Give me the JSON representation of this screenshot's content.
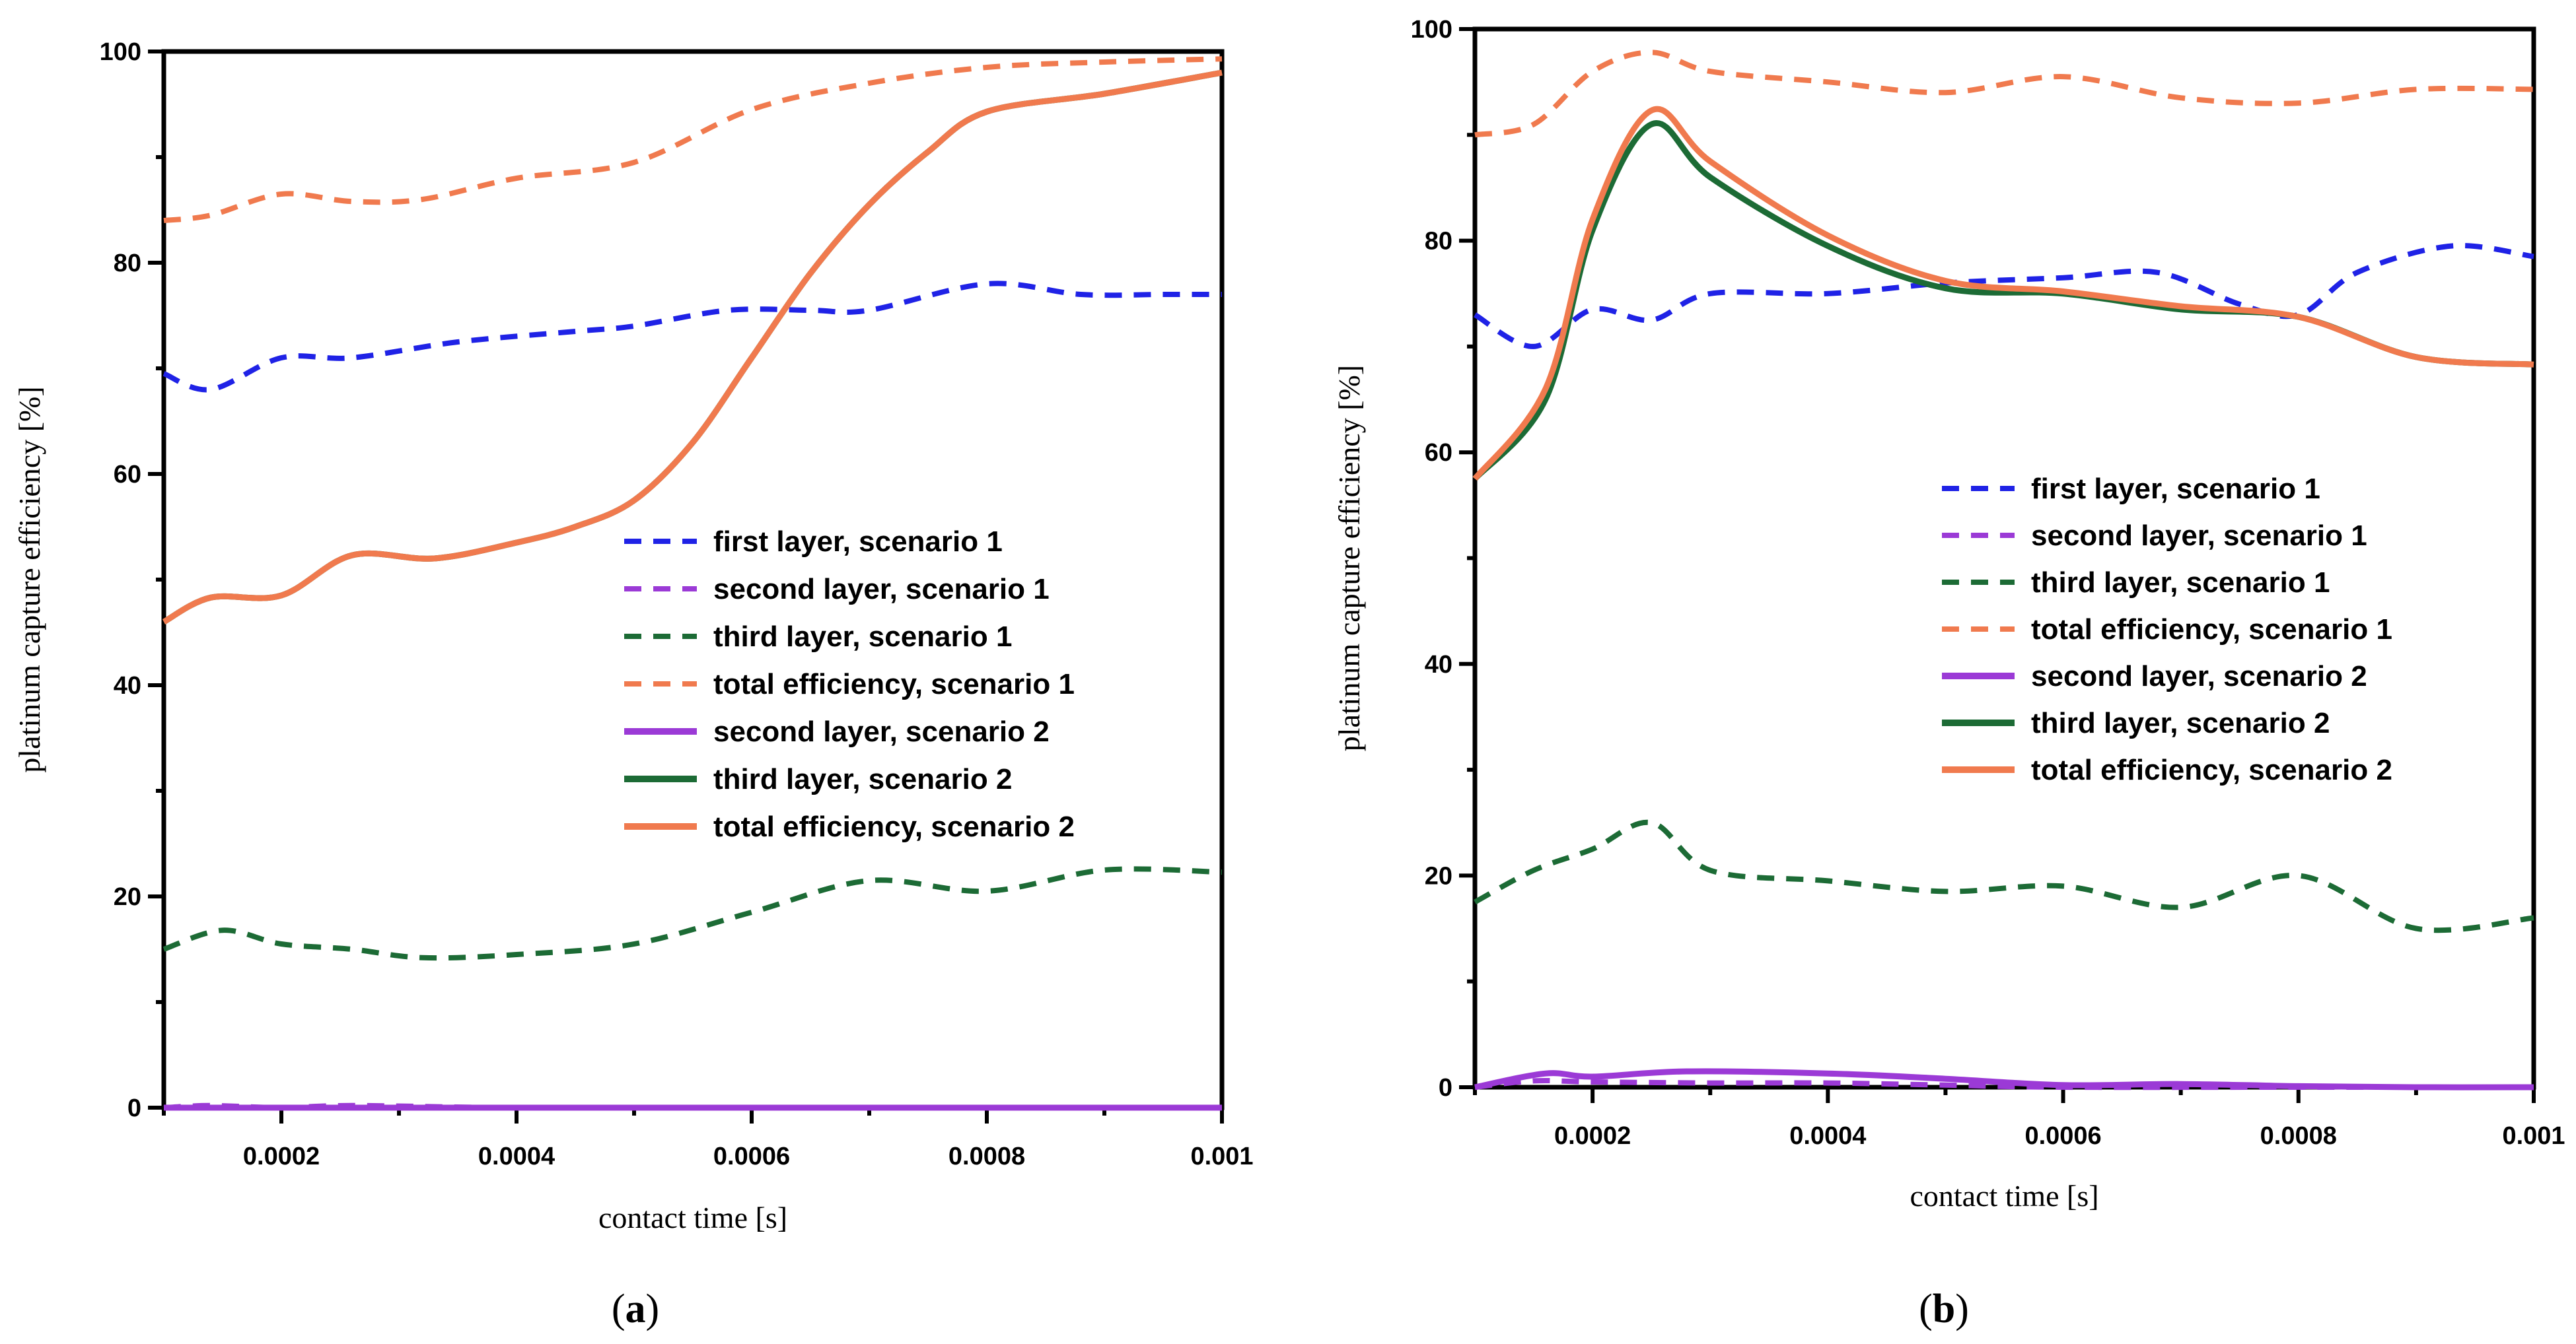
{
  "chart_data": [
    {
      "panel": "a",
      "type": "line",
      "caption_left": "(",
      "caption_letter": "a",
      "caption_right": ")",
      "xlabel": "contact time [s]",
      "ylabel": "platinum capture efficiency [%]",
      "xlim": [
        0.0001,
        0.001
      ],
      "ylim": [
        0,
        100
      ],
      "xticks": [
        "0.0002",
        "0.0004",
        "0.0006",
        "0.0008",
        "0.001"
      ],
      "xtick_values": [
        0.0002,
        0.0004,
        0.0006,
        0.0008,
        0.001
      ],
      "yticks": [
        "0",
        "20",
        "40",
        "60",
        "80",
        "100"
      ],
      "ytick_values": [
        0,
        20,
        40,
        60,
        80,
        100
      ],
      "legend_position": "center-right",
      "series": [
        {
          "name": "first layer, scenario 1",
          "color": "#1f22e6",
          "dashed": true,
          "x": [
            0.0001,
            0.00014,
            0.0002,
            0.00026,
            0.00035,
            0.00045,
            0.0005,
            0.00058,
            0.00065,
            0.0007,
            0.0008,
            0.00088,
            0.00095,
            0.001
          ],
          "y": [
            69.5,
            68,
            71,
            71,
            72.5,
            73.5,
            74,
            75.5,
            75.5,
            75.5,
            78,
            77,
            77,
            77
          ]
        },
        {
          "name": "second layer, scenario 1",
          "color": "#9b3ad6",
          "dashed": true,
          "x": [
            0.0001,
            0.00014,
            0.0002,
            0.00026,
            0.0004,
            0.0006,
            0.0008,
            0.001
          ],
          "y": [
            0,
            0.2,
            0,
            0.2,
            0,
            0,
            0,
            0
          ]
        },
        {
          "name": "third layer, scenario 1",
          "color": "#1c6b35",
          "dashed": true,
          "x": [
            0.0001,
            0.00015,
            0.0002,
            0.00026,
            0.00032,
            0.0004,
            0.0005,
            0.0006,
            0.0007,
            0.0008,
            0.0009,
            0.001
          ],
          "y": [
            15,
            16.8,
            15.5,
            15,
            14.2,
            14.5,
            15.5,
            18.5,
            21.5,
            20.5,
            22.5,
            22.3
          ]
        },
        {
          "name": "total efficiency, scenario 1",
          "color": "#f07a4e",
          "dashed": true,
          "x": [
            0.0001,
            0.00014,
            0.0002,
            0.00026,
            0.00032,
            0.0004,
            0.0005,
            0.0006,
            0.0007,
            0.0008,
            0.0009,
            0.001
          ],
          "y": [
            84,
            84.5,
            86.5,
            85.8,
            86,
            88,
            89.5,
            94.5,
            97,
            98.5,
            99,
            99.3
          ]
        },
        {
          "name": "second layer, scenario 2",
          "color": "#9b3ad6",
          "dashed": false,
          "x": [
            0.0001,
            0.0002,
            0.0004,
            0.0006,
            0.0008,
            0.001
          ],
          "y": [
            0,
            0,
            0,
            0,
            0,
            0
          ]
        },
        {
          "name": "third layer, scenario 2",
          "color": "#1c6b35",
          "dashed": false,
          "x": [
            0.0001,
            0.00014,
            0.0002,
            0.00026,
            0.00033,
            0.0004,
            0.00045,
            0.0005,
            0.00055,
            0.0006,
            0.00065,
            0.0007,
            0.00075,
            0.0008,
            0.0009,
            0.001
          ],
          "y": [
            46,
            48.3,
            48.5,
            52.3,
            52,
            53.5,
            55,
            57.5,
            63,
            71,
            79,
            85.5,
            90.5,
            94.3,
            96,
            98
          ]
        },
        {
          "name": "total efficiency, scenario 2",
          "color": "#f07a4e",
          "dashed": false,
          "x": [
            0.0001,
            0.00014,
            0.0002,
            0.00026,
            0.00033,
            0.0004,
            0.00045,
            0.0005,
            0.00055,
            0.0006,
            0.00065,
            0.0007,
            0.00075,
            0.0008,
            0.0009,
            0.001
          ],
          "y": [
            46,
            48.3,
            48.5,
            52.3,
            52,
            53.5,
            55,
            57.5,
            63,
            71,
            79,
            85.5,
            90.5,
            94.3,
            96,
            98
          ]
        }
      ]
    },
    {
      "panel": "b",
      "type": "line",
      "caption_left": "(",
      "caption_letter": "b",
      "caption_right": ")",
      "xlabel": "contact time [s]",
      "ylabel": "platinum capture efficiency [%]",
      "xlim": [
        0.0001,
        0.001
      ],
      "ylim": [
        0,
        100
      ],
      "xticks": [
        "0.0002",
        "0.0004",
        "0.0006",
        "0.0008",
        "0.001"
      ],
      "xtick_values": [
        0.0002,
        0.0004,
        0.0006,
        0.0008,
        0.001
      ],
      "yticks": [
        "0",
        "20",
        "40",
        "60",
        "80",
        "100"
      ],
      "ytick_values": [
        0,
        20,
        40,
        60,
        80,
        100
      ],
      "legend_position": "center-right",
      "series": [
        {
          "name": "first layer, scenario 1",
          "color": "#1f22e6",
          "dashed": true,
          "x": [
            0.0001,
            0.00015,
            0.0002,
            0.00025,
            0.0003,
            0.0004,
            0.0005,
            0.0006,
            0.00068,
            0.00075,
            0.0008,
            0.00085,
            0.00093,
            0.001
          ],
          "y": [
            73,
            70,
            73.5,
            72.5,
            75,
            75,
            76,
            76.5,
            77,
            74,
            73,
            77,
            79.5,
            78.5
          ]
        },
        {
          "name": "second layer, scenario 1",
          "color": "#9b3ad6",
          "dashed": true,
          "x": [
            0.0001,
            0.00015,
            0.0002,
            0.0003,
            0.0004,
            0.0005,
            0.0006,
            0.0008,
            0.001
          ],
          "y": [
            0,
            0.6,
            0.5,
            0.4,
            0.4,
            0.2,
            0,
            0,
            0
          ]
        },
        {
          "name": "third layer, scenario 1",
          "color": "#1c6b35",
          "dashed": true,
          "x": [
            0.0001,
            0.00015,
            0.0002,
            0.00025,
            0.0003,
            0.0004,
            0.0005,
            0.0006,
            0.0007,
            0.0008,
            0.0009,
            0.001
          ],
          "y": [
            17.5,
            20.5,
            22.5,
            25,
            20.5,
            19.5,
            18.5,
            19,
            17,
            20,
            15,
            16
          ]
        },
        {
          "name": "total efficiency, scenario 1",
          "color": "#f07a4e",
          "dashed": true,
          "x": [
            0.0001,
            0.00015,
            0.0002,
            0.00025,
            0.0003,
            0.0004,
            0.0005,
            0.0006,
            0.0007,
            0.0008,
            0.0009,
            0.001
          ],
          "y": [
            90,
            91,
            96,
            97.8,
            96,
            95,
            94,
            95.5,
            93.5,
            93,
            94.3,
            94.3
          ]
        },
        {
          "name": "second layer, scenario 2",
          "color": "#9b3ad6",
          "dashed": false,
          "x": [
            0.0001,
            0.00016,
            0.0002,
            0.00028,
            0.0004,
            0.0005,
            0.0006,
            0.0007,
            0.0008,
            0.0009,
            0.001
          ],
          "y": [
            0,
            1.3,
            1,
            1.5,
            1.3,
            0.8,
            0.2,
            0.3,
            0.1,
            0,
            0
          ]
        },
        {
          "name": "third layer, scenario 2",
          "color": "#1c6b35",
          "dashed": false,
          "x": [
            0.0001,
            0.00016,
            0.0002,
            0.00025,
            0.0003,
            0.0004,
            0.0005,
            0.0006,
            0.0007,
            0.0008,
            0.0009,
            0.001
          ],
          "y": [
            57.5,
            65,
            81,
            91,
            86,
            79.5,
            75.5,
            75,
            73.5,
            72.8,
            69,
            68.3
          ]
        },
        {
          "name": "total efficiency, scenario 2",
          "color": "#f07a4e",
          "dashed": false,
          "x": [
            0.0001,
            0.00016,
            0.0002,
            0.00025,
            0.0003,
            0.0004,
            0.0005,
            0.0006,
            0.0007,
            0.0008,
            0.0009,
            0.001
          ],
          "y": [
            57.5,
            66,
            82,
            92.3,
            87.5,
            80.5,
            76.2,
            75.2,
            73.8,
            72.8,
            69,
            68.3
          ]
        }
      ]
    }
  ]
}
